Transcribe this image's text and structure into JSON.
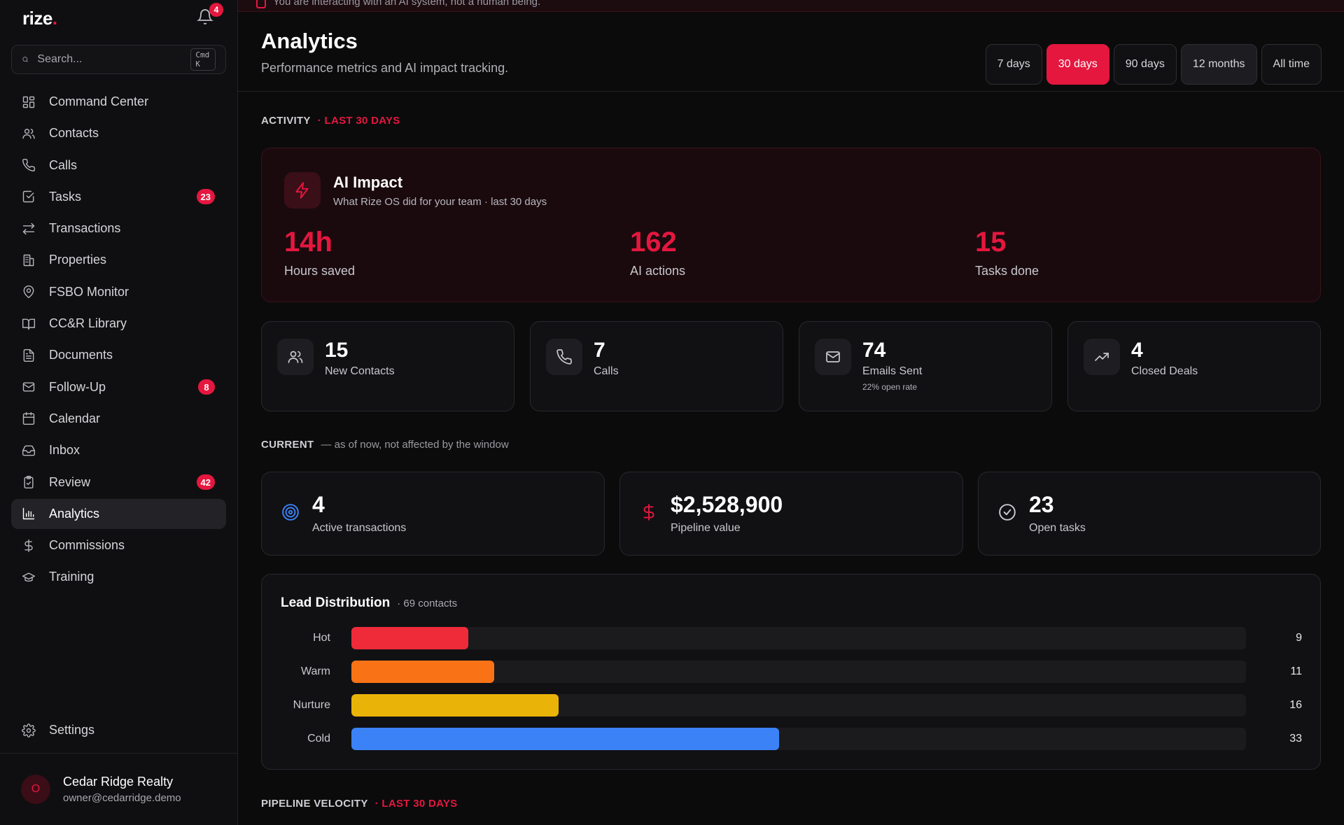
{
  "sidebar": {
    "logo": "rize",
    "logo_dot": ".",
    "notifications_count": "4",
    "search": {
      "placeholder": "Search...",
      "shortcut": "Cmd K"
    },
    "items": [
      {
        "label": "Command Center",
        "icon": "grid-icon"
      },
      {
        "label": "Contacts",
        "icon": "users-icon"
      },
      {
        "label": "Calls",
        "icon": "phone-icon"
      },
      {
        "label": "Tasks",
        "icon": "checkbox-icon",
        "badge": "23"
      },
      {
        "label": "Transactions",
        "icon": "arrows-icon"
      },
      {
        "label": "Properties",
        "icon": "building-icon"
      },
      {
        "label": "FSBO Monitor",
        "icon": "map-pin-icon"
      },
      {
        "label": "CC&R Library",
        "icon": "book-icon"
      },
      {
        "label": "Documents",
        "icon": "document-icon"
      },
      {
        "label": "Follow-Up",
        "icon": "mail-icon",
        "badge": "8"
      },
      {
        "label": "Calendar",
        "icon": "calendar-icon"
      },
      {
        "label": "Inbox",
        "icon": "inbox-icon"
      },
      {
        "label": "Review",
        "icon": "clipboard-icon",
        "badge": "42"
      },
      {
        "label": "Analytics",
        "icon": "bar-chart-icon",
        "active": true
      },
      {
        "label": "Commissions",
        "icon": "dollar-icon"
      },
      {
        "label": "Training",
        "icon": "graduation-icon"
      }
    ],
    "settings_label": "Settings",
    "account": {
      "initial": "O",
      "name": "Cedar Ridge Realty",
      "email": "owner@cedarridge.demo"
    }
  },
  "banner": {
    "text": "You are interacting with an AI system, not a human being."
  },
  "header": {
    "title": "Analytics",
    "subtitle": "Performance metrics and AI impact tracking.",
    "ranges": [
      "7 days",
      "30 days",
      "90 days",
      "12 months",
      "All time"
    ],
    "active_range": "30 days"
  },
  "activity": {
    "label": "ACTIVITY",
    "window": "· LAST 30 DAYS",
    "ai_impact": {
      "title": "AI Impact",
      "subtitle": "What Rize OS did for your team · last 30 days",
      "stats": [
        {
          "value": "14h",
          "label": "Hours saved"
        },
        {
          "value": "162",
          "label": "AI actions"
        },
        {
          "value": "15",
          "label": "Tasks done"
        }
      ]
    },
    "metrics": [
      {
        "value": "15",
        "label": "New Contacts",
        "icon": "users-icon"
      },
      {
        "value": "7",
        "label": "Calls",
        "icon": "phone-icon"
      },
      {
        "value": "74",
        "label": "Emails Sent",
        "note": "22% open rate",
        "icon": "mail-icon"
      },
      {
        "value": "4",
        "label": "Closed Deals",
        "icon": "trending-up-icon"
      }
    ]
  },
  "current": {
    "label": "CURRENT",
    "note": "— as of now, not affected by the window",
    "cards": [
      {
        "value": "4",
        "label": "Active transactions",
        "icon": "target-icon",
        "color": "#3b82f6"
      },
      {
        "value": "$2,528,900",
        "label": "Pipeline value",
        "icon": "dollar-icon",
        "color": "#e5173f"
      },
      {
        "value": "23",
        "label": "Open tasks",
        "icon": "check-circle-icon",
        "color": "#c8c8cd"
      }
    ]
  },
  "lead_distribution": {
    "title": "Lead Distribution",
    "subtitle": "· 69 contacts",
    "max": 69,
    "rows": [
      {
        "label": "Hot",
        "count": "9",
        "value": 9,
        "color": "#ef2b3a"
      },
      {
        "label": "Warm",
        "count": "11",
        "value": 11,
        "color": "#f97316"
      },
      {
        "label": "Nurture",
        "count": "16",
        "value": 16,
        "color": "#eab308"
      },
      {
        "label": "Cold",
        "count": "33",
        "value": 33,
        "color": "#3b82f6"
      }
    ]
  },
  "pipeline_velocity": {
    "label": "PIPELINE VELOCITY",
    "window": "· LAST 30 DAYS"
  }
}
